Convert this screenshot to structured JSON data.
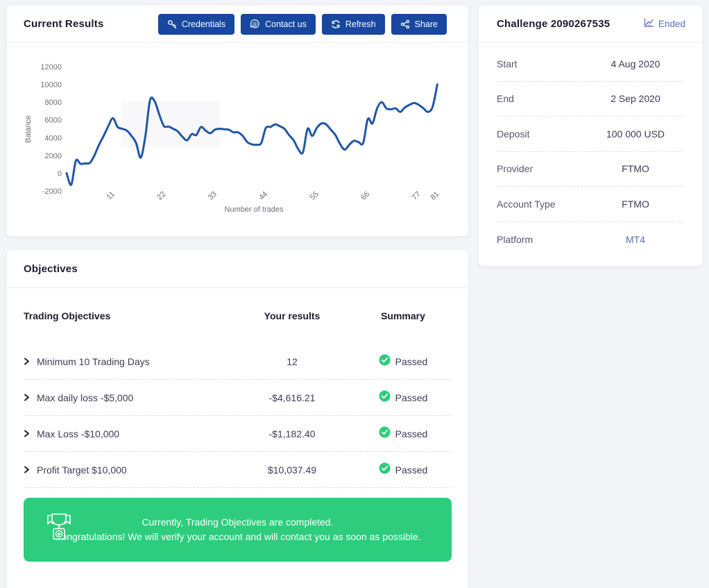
{
  "current_results": {
    "title": "Current Results",
    "buttons": [
      {
        "label": "Credentials",
        "icon": "key-icon"
      },
      {
        "label": "Contact us",
        "icon": "chat-icon"
      },
      {
        "label": "Refresh",
        "icon": "refresh-icon"
      },
      {
        "label": "Share",
        "icon": "share-icon"
      }
    ]
  },
  "chart_data": {
    "type": "line",
    "xlabel": "Number of trades",
    "ylabel": "Balance",
    "xlim": [
      1,
      81
    ],
    "ylim": [
      -2000,
      12000
    ],
    "x_ticks": [
      11,
      22,
      33,
      44,
      55,
      66,
      77,
      81
    ],
    "y_ticks": [
      12000,
      10000,
      8000,
      6000,
      4000,
      2000,
      0,
      -2000
    ],
    "grid": false,
    "legend": false,
    "line_color": "#2056a5",
    "x": [
      1,
      2,
      3,
      4,
      5,
      6,
      7,
      8,
      9,
      10,
      11,
      12,
      13,
      14,
      15,
      16,
      17,
      18,
      19,
      20,
      21,
      22,
      23,
      24,
      25,
      26,
      27,
      28,
      29,
      30,
      31,
      32,
      33,
      34,
      35,
      36,
      37,
      38,
      39,
      40,
      41,
      42,
      43,
      44,
      45,
      46,
      47,
      48,
      49,
      50,
      51,
      52,
      53,
      54,
      55,
      56,
      57,
      58,
      59,
      60,
      61,
      62,
      63,
      64,
      65,
      66,
      67,
      68,
      69,
      70,
      71,
      72,
      73,
      74,
      75,
      76,
      77,
      78,
      79,
      80,
      81
    ],
    "values": [
      0,
      -1300,
      1400,
      1050,
      1100,
      1150,
      2000,
      3200,
      4200,
      5300,
      6200,
      5200,
      5000,
      4800,
      4200,
      3400,
      1750,
      4200,
      8200,
      8100,
      6600,
      5300,
      5250,
      5000,
      4700,
      4100,
      3700,
      4400,
      4300,
      5200,
      4800,
      4500,
      4900,
      5000,
      4950,
      4900,
      4600,
      4600,
      4200,
      3500,
      3250,
      3200,
      3400,
      5100,
      5200,
      5500,
      5300,
      5000,
      4300,
      3700,
      2700,
      2350,
      5000,
      4200,
      5100,
      5600,
      5500,
      4900,
      4300,
      3300,
      2650,
      3200,
      3650,
      3500,
      3400,
      6100,
      5600,
      7300,
      8000,
      7300,
      7200,
      7300,
      6900,
      7400,
      7700,
      7900,
      7700,
      7300,
      6900,
      7500,
      10000
    ]
  },
  "challenge": {
    "title": "Challenge 2090267535",
    "status": {
      "label": "Ended",
      "icon": "chart-line-icon"
    },
    "rows": [
      {
        "label": "Start",
        "value": "4 Aug 2020"
      },
      {
        "label": "End",
        "value": "2 Sep 2020"
      },
      {
        "label": "Deposit",
        "value": "100 000 USD"
      },
      {
        "label": "Provider",
        "value": "FTMO"
      },
      {
        "label": "Account Type",
        "value": "FTMO"
      },
      {
        "label": "Platform",
        "value": "MT4"
      }
    ]
  },
  "objectives": {
    "title": "Objectives",
    "columns": {
      "c1": "Trading Objectives",
      "c2": "Your results",
      "c3": "Summary"
    },
    "rows": [
      {
        "objective": "Minimum 10 Trading Days",
        "result": "12",
        "summary": "Passed"
      },
      {
        "objective": "Max daily loss -$5,000",
        "result": "-$4,616.21",
        "summary": "Passed"
      },
      {
        "objective": "Max Loss -$10,000",
        "result": "-$1,182.40",
        "summary": "Passed"
      },
      {
        "objective": "Profit Target $10,000",
        "result": "$10,037.49",
        "summary": "Passed"
      }
    ],
    "banner": {
      "line1": "Currently, Trading Objectives are completed.",
      "line2": "Congratulations! We will verify your account and will contact you as soon as possible.",
      "icon": "trophy-icon"
    }
  },
  "colors": {
    "button_blue": "#17479e",
    "line_blue": "#2056a5",
    "accent_indigo": "#5c6bc0",
    "success_green": "#2ecc7d",
    "axis_text": "#6e6e78",
    "page_bg": "#f4f5f9"
  }
}
